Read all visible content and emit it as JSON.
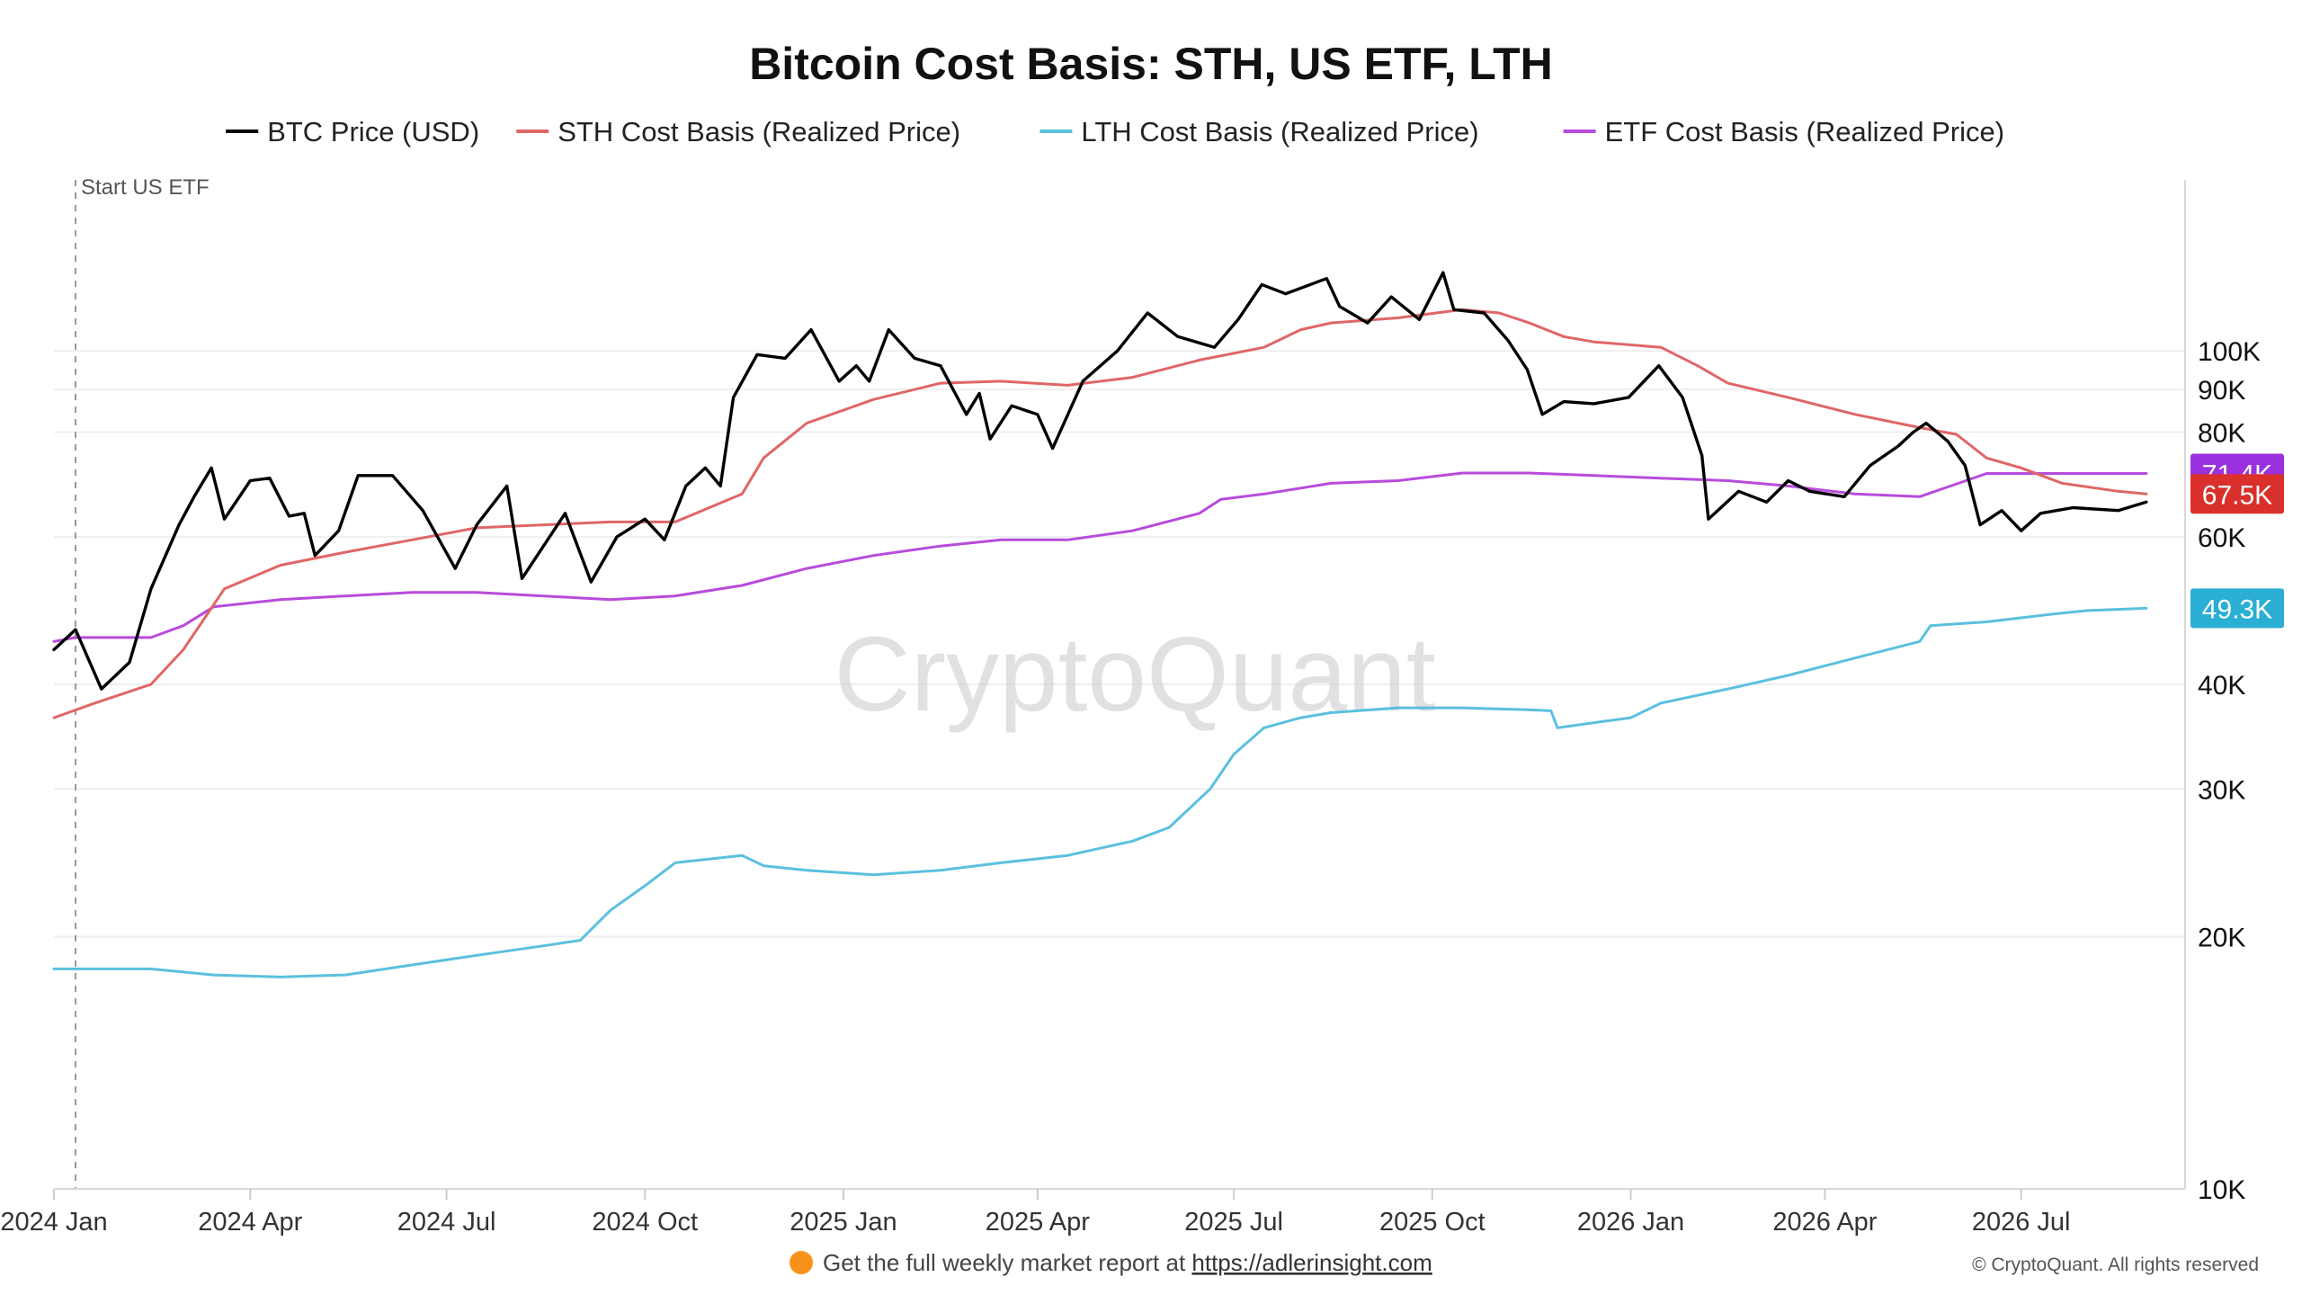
{
  "chart_data": {
    "type": "line",
    "title": "Bitcoin Cost Basis: STH, US ETF, LTH",
    "y_scale": "log",
    "ylim": [
      10000,
      160000
    ],
    "xlim": [
      "2024-01-01",
      "2026-09-15"
    ],
    "grid": "horizontal",
    "legend_position": "top",
    "x_ticks": [
      {
        "date": "2024-01-01",
        "label": "2024 Jan"
      },
      {
        "date": "2024-04-01",
        "label": "2024 Apr"
      },
      {
        "date": "2024-07-01",
        "label": "2024 Jul"
      },
      {
        "date": "2024-10-01",
        "label": "2024 Oct"
      },
      {
        "date": "2025-01-01",
        "label": "2025 Jan"
      },
      {
        "date": "2025-04-01",
        "label": "2025 Apr"
      },
      {
        "date": "2025-07-01",
        "label": "2025 Jul"
      },
      {
        "date": "2025-10-01",
        "label": "2025 Oct"
      },
      {
        "date": "2026-01-01",
        "label": "2026 Jan"
      },
      {
        "date": "2026-04-01",
        "label": "2026 Apr"
      },
      {
        "date": "2026-07-01",
        "label": "2026 Jul"
      }
    ],
    "y_ticks": [
      {
        "value": 10000,
        "label": "10K"
      },
      {
        "value": 20000,
        "label": "20K"
      },
      {
        "value": 30000,
        "label": "30K"
      },
      {
        "value": 40000,
        "label": "40K"
      },
      {
        "value": 60000,
        "label": "60K"
      },
      {
        "value": 80000,
        "label": "80K"
      },
      {
        "value": 90000,
        "label": "90K"
      },
      {
        "value": 100000,
        "label": "100K"
      }
    ],
    "annotation": {
      "date": "2024-01-11",
      "label": "Start US ETF"
    },
    "series": [
      {
        "name": "BTC Price (USD)",
        "color": "#000000",
        "points": [
          [
            "2024-01-01",
            44000
          ],
          [
            "2024-01-11",
            46500
          ],
          [
            "2024-01-23",
            39500
          ],
          [
            "2024-02-05",
            42500
          ],
          [
            "2024-02-15",
            52000
          ],
          [
            "2024-02-28",
            62000
          ],
          [
            "2024-03-06",
            67000
          ],
          [
            "2024-03-14",
            72500
          ],
          [
            "2024-03-20",
            63000
          ],
          [
            "2024-04-01",
            70000
          ],
          [
            "2024-04-10",
            70500
          ],
          [
            "2024-04-19",
            63500
          ],
          [
            "2024-04-26",
            64000
          ],
          [
            "2024-05-01",
            57000
          ],
          [
            "2024-05-12",
            61000
          ],
          [
            "2024-05-21",
            71000
          ],
          [
            "2024-06-06",
            71000
          ],
          [
            "2024-06-20",
            64500
          ],
          [
            "2024-07-05",
            55000
          ],
          [
            "2024-07-15",
            62000
          ],
          [
            "2024-07-29",
            69000
          ],
          [
            "2024-08-05",
            53500
          ],
          [
            "2024-08-25",
            64000
          ],
          [
            "2024-09-06",
            53000
          ],
          [
            "2024-09-18",
            60000
          ],
          [
            "2024-10-01",
            63000
          ],
          [
            "2024-10-10",
            59500
          ],
          [
            "2024-10-20",
            69000
          ],
          [
            "2024-10-29",
            72500
          ],
          [
            "2024-11-05",
            69000
          ],
          [
            "2024-11-11",
            88000
          ],
          [
            "2024-11-22",
            99000
          ],
          [
            "2024-12-05",
            98000
          ],
          [
            "2024-12-17",
            106000
          ],
          [
            "2024-12-30",
            92000
          ],
          [
            "2025-01-07",
            96000
          ],
          [
            "2025-01-13",
            92000
          ],
          [
            "2025-01-22",
            106000
          ],
          [
            "2025-02-03",
            98000
          ],
          [
            "2025-02-15",
            96000
          ],
          [
            "2025-02-27",
            84000
          ],
          [
            "2025-03-05",
            89000
          ],
          [
            "2025-03-10",
            78500
          ],
          [
            "2025-03-20",
            86000
          ],
          [
            "2025-04-01",
            84000
          ],
          [
            "2025-04-08",
            76500
          ],
          [
            "2025-04-22",
            92000
          ],
          [
            "2025-05-08",
            100000
          ],
          [
            "2025-05-22",
            111000
          ],
          [
            "2025-06-05",
            104000
          ],
          [
            "2025-06-22",
            101000
          ],
          [
            "2025-07-03",
            109000
          ],
          [
            "2025-07-14",
            120000
          ],
          [
            "2025-07-25",
            117000
          ],
          [
            "2025-08-13",
            122000
          ],
          [
            "2025-08-19",
            113000
          ],
          [
            "2025-09-01",
            108000
          ],
          [
            "2025-09-12",
            116000
          ],
          [
            "2025-09-25",
            109000
          ],
          [
            "2025-10-06",
            124000
          ],
          [
            "2025-10-11",
            112000
          ],
          [
            "2025-10-25",
            111000
          ],
          [
            "2025-11-05",
            103000
          ],
          [
            "2025-11-14",
            95000
          ],
          [
            "2025-11-21",
            84000
          ],
          [
            "2025-12-01",
            87000
          ],
          [
            "2025-12-15",
            86500
          ],
          [
            "2025-12-31",
            88000
          ],
          [
            "2026-01-14",
            96000
          ],
          [
            "2026-01-25",
            88000
          ],
          [
            "2026-02-03",
            75000
          ],
          [
            "2026-02-06",
            63000
          ],
          [
            "2026-02-20",
            68000
          ],
          [
            "2026-03-05",
            66000
          ],
          [
            "2026-03-15",
            70000
          ],
          [
            "2026-03-25",
            68000
          ],
          [
            "2026-04-10",
            67000
          ],
          [
            "2026-04-22",
            73000
          ],
          [
            "2026-05-05",
            77000
          ],
          [
            "2026-05-12",
            80000
          ],
          [
            "2026-05-18",
            82000
          ],
          [
            "2026-05-28",
            78000
          ],
          [
            "2026-06-05",
            73000
          ],
          [
            "2026-06-12",
            62000
          ],
          [
            "2026-06-22",
            64500
          ],
          [
            "2026-07-01",
            61000
          ],
          [
            "2026-07-10",
            64000
          ],
          [
            "2026-07-25",
            65000
          ],
          [
            "2026-08-15",
            64500
          ],
          [
            "2026-08-28",
            66000
          ]
        ]
      },
      {
        "name": "STH Cost Basis (Realized Price)",
        "color": "#e06666",
        "points": [
          [
            "2024-01-01",
            36500
          ],
          [
            "2024-01-20",
            38000
          ],
          [
            "2024-02-15",
            40000
          ],
          [
            "2024-03-01",
            44000
          ],
          [
            "2024-03-20",
            52000
          ],
          [
            "2024-04-15",
            55500
          ],
          [
            "2024-05-15",
            57500
          ],
          [
            "2024-06-15",
            59500
          ],
          [
            "2024-07-15",
            61500
          ],
          [
            "2024-08-15",
            62000
          ],
          [
            "2024-09-15",
            62500
          ],
          [
            "2024-10-15",
            62500
          ],
          [
            "2024-11-15",
            67500
          ],
          [
            "2024-11-25",
            74500
          ],
          [
            "2024-12-15",
            82000
          ],
          [
            "2025-01-15",
            87500
          ],
          [
            "2025-02-15",
            91500
          ],
          [
            "2025-03-15",
            92000
          ],
          [
            "2025-04-15",
            91000
          ],
          [
            "2025-05-15",
            93000
          ],
          [
            "2025-06-15",
            97500
          ],
          [
            "2025-07-15",
            101000
          ],
          [
            "2025-08-01",
            106000
          ],
          [
            "2025-08-15",
            108000
          ],
          [
            "2025-09-15",
            109500
          ],
          [
            "2025-10-15",
            112000
          ],
          [
            "2025-11-01",
            111000
          ],
          [
            "2025-11-15",
            108000
          ],
          [
            "2025-12-01",
            104000
          ],
          [
            "2025-12-15",
            102500
          ],
          [
            "2026-01-15",
            101000
          ],
          [
            "2026-02-01",
            96000
          ],
          [
            "2026-02-15",
            91500
          ],
          [
            "2026-03-15",
            88000
          ],
          [
            "2026-04-15",
            84000
          ],
          [
            "2026-05-15",
            81000
          ],
          [
            "2026-06-01",
            79500
          ],
          [
            "2026-06-15",
            74500
          ],
          [
            "2026-07-01",
            72500
          ],
          [
            "2026-07-20",
            69500
          ],
          [
            "2026-08-15",
            68000
          ],
          [
            "2026-08-28",
            67500
          ]
        ]
      },
      {
        "name": "LTH Cost Basis (Realized Price)",
        "color": "#5bc0de",
        "points": [
          [
            "2024-01-01",
            18300
          ],
          [
            "2024-02-15",
            18300
          ],
          [
            "2024-03-15",
            18000
          ],
          [
            "2024-04-15",
            17900
          ],
          [
            "2024-05-15",
            18000
          ],
          [
            "2024-06-15",
            18500
          ],
          [
            "2024-07-15",
            19000
          ],
          [
            "2024-08-15",
            19500
          ],
          [
            "2024-09-01",
            19800
          ],
          [
            "2024-09-15",
            21500
          ],
          [
            "2024-10-01",
            23000
          ],
          [
            "2024-10-15",
            24500
          ],
          [
            "2024-11-15",
            25000
          ],
          [
            "2024-11-25",
            24300
          ],
          [
            "2024-12-15",
            24000
          ],
          [
            "2025-01-15",
            23700
          ],
          [
            "2025-02-15",
            24000
          ],
          [
            "2025-03-15",
            24500
          ],
          [
            "2025-04-15",
            25000
          ],
          [
            "2025-05-15",
            26000
          ],
          [
            "2025-06-01",
            27000
          ],
          [
            "2025-06-20",
            30000
          ],
          [
            "2025-07-01",
            33000
          ],
          [
            "2025-07-15",
            35500
          ],
          [
            "2025-08-01",
            36500
          ],
          [
            "2025-08-15",
            37000
          ],
          [
            "2025-09-15",
            37500
          ],
          [
            "2025-10-15",
            37500
          ],
          [
            "2025-11-15",
            37300
          ],
          [
            "2025-11-25",
            37200
          ],
          [
            "2025-11-28",
            35500
          ],
          [
            "2025-12-15",
            36000
          ],
          [
            "2026-01-01",
            36500
          ],
          [
            "2026-01-15",
            38000
          ],
          [
            "2026-02-15",
            39500
          ],
          [
            "2026-03-15",
            41000
          ],
          [
            "2026-04-15",
            43000
          ],
          [
            "2026-05-15",
            45000
          ],
          [
            "2026-05-20",
            47000
          ],
          [
            "2026-06-15",
            47500
          ],
          [
            "2026-07-15",
            48500
          ],
          [
            "2026-08-01",
            49000
          ],
          [
            "2026-08-28",
            49300
          ]
        ]
      },
      {
        "name": "ETF Cost Basis (Realized Price)",
        "color": "#b84bdc",
        "points": [
          [
            "2024-01-01",
            45000
          ],
          [
            "2024-01-11",
            45500
          ],
          [
            "2024-02-15",
            45500
          ],
          [
            "2024-03-01",
            47000
          ],
          [
            "2024-03-15",
            49500
          ],
          [
            "2024-04-15",
            50500
          ],
          [
            "2024-05-15",
            51000
          ],
          [
            "2024-06-15",
            51500
          ],
          [
            "2024-07-15",
            51500
          ],
          [
            "2024-08-15",
            51000
          ],
          [
            "2024-09-15",
            50500
          ],
          [
            "2024-10-15",
            51000
          ],
          [
            "2024-11-15",
            52500
          ],
          [
            "2024-12-15",
            55000
          ],
          [
            "2025-01-15",
            57000
          ],
          [
            "2025-02-15",
            58500
          ],
          [
            "2025-03-15",
            59500
          ],
          [
            "2025-04-15",
            59500
          ],
          [
            "2025-05-15",
            61000
          ],
          [
            "2025-06-15",
            64000
          ],
          [
            "2025-06-25",
            66500
          ],
          [
            "2025-07-15",
            67500
          ],
          [
            "2025-08-15",
            69500
          ],
          [
            "2025-09-15",
            70000
          ],
          [
            "2025-10-15",
            71500
          ],
          [
            "2025-11-15",
            71500
          ],
          [
            "2025-12-15",
            71000
          ],
          [
            "2026-01-15",
            70500
          ],
          [
            "2026-02-15",
            70000
          ],
          [
            "2026-03-15",
            69000
          ],
          [
            "2026-04-15",
            67500
          ],
          [
            "2026-05-15",
            67000
          ],
          [
            "2026-06-15",
            71400
          ],
          [
            "2026-08-28",
            71400
          ]
        ]
      }
    ],
    "value_badges": [
      {
        "series": "ETF Cost Basis (Realized Price)",
        "value": 71400,
        "label": "71.4K",
        "color": "#9b30e0"
      },
      {
        "series": "STH Cost Basis (Realized Price)",
        "value": 67500,
        "label": "67.5K",
        "color": "#d9302c"
      },
      {
        "series": "LTH Cost Basis (Realized Price)",
        "value": 49300,
        "label": "49.3K",
        "color": "#2aaed4"
      }
    ]
  },
  "watermark": "CryptoQuant",
  "footer": {
    "icon": "orange-circle-icon",
    "text": "Get the full weekly market report at ",
    "link": "https://adlerinsight.com"
  },
  "copyright": "© CryptoQuant. All rights reserved"
}
